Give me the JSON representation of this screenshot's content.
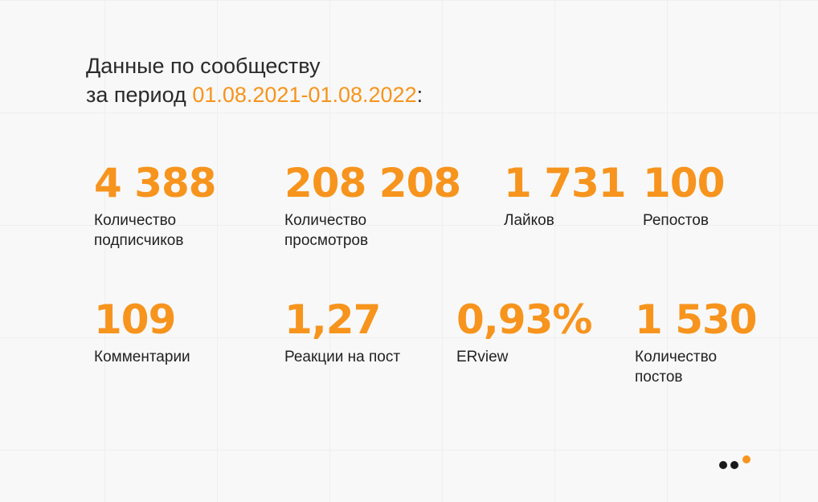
{
  "header": {
    "line1": "Данные по сообществу",
    "line2_prefix": "за период",
    "period": "01.08.2021-01.08.2022",
    "line2_suffix": ":"
  },
  "stats": [
    {
      "value": "4 388",
      "label": "Количество подписчиков"
    },
    {
      "value": "208 208",
      "label": "Количество просмотров"
    },
    {
      "value": "1 731",
      "label": "Лайков"
    },
    {
      "value": "100",
      "label": "Репостов"
    },
    {
      "value": "109",
      "label": "Комментарии"
    },
    {
      "value": "1,27",
      "label": "Реакции на пост"
    },
    {
      "value": "0,93%",
      "label": "ERview"
    },
    {
      "value": "1 530",
      "label": "Количество постов"
    }
  ]
}
